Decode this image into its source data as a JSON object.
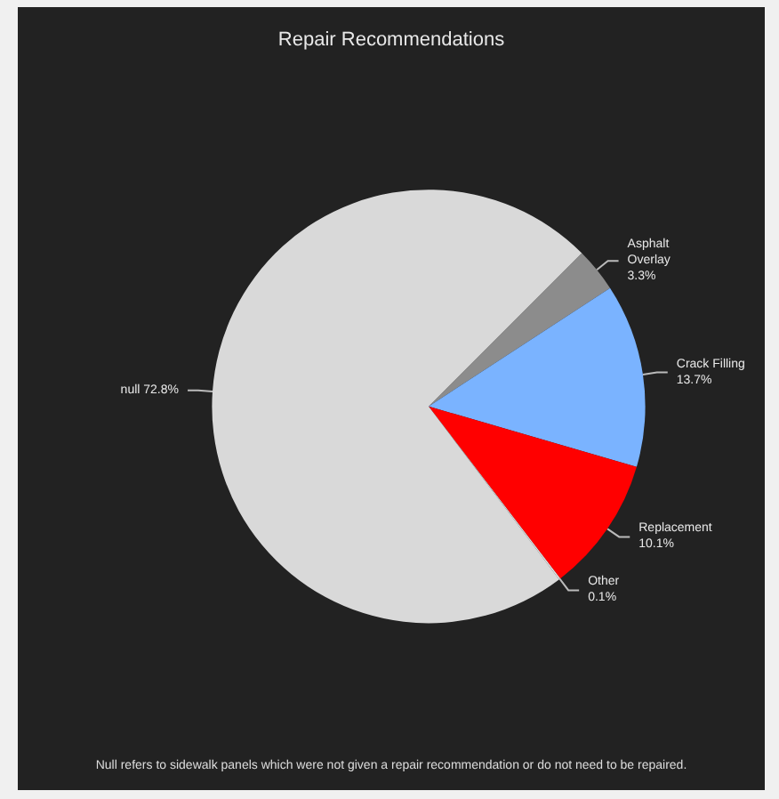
{
  "chart_data": {
    "type": "pie",
    "title": "Repair Recommendations",
    "categories": [
      "Asphalt Overlay",
      "Crack Filling",
      "Replacement",
      "Other",
      "null"
    ],
    "values": [
      3.3,
      13.7,
      10.1,
      0.1,
      72.8
    ],
    "value_labels": [
      "3.3%",
      "13.7%",
      "10.1%",
      "0.1%",
      "72.8%"
    ],
    "colors": [
      "#8c8c8c",
      "#7ab3ff",
      "#ff0000",
      "#e8e8e8",
      "#d9d9d9"
    ],
    "annotations": [
      "Null refers to sidewalk panels which were not given a repair recommendation or do not need to be repaired."
    ]
  }
}
